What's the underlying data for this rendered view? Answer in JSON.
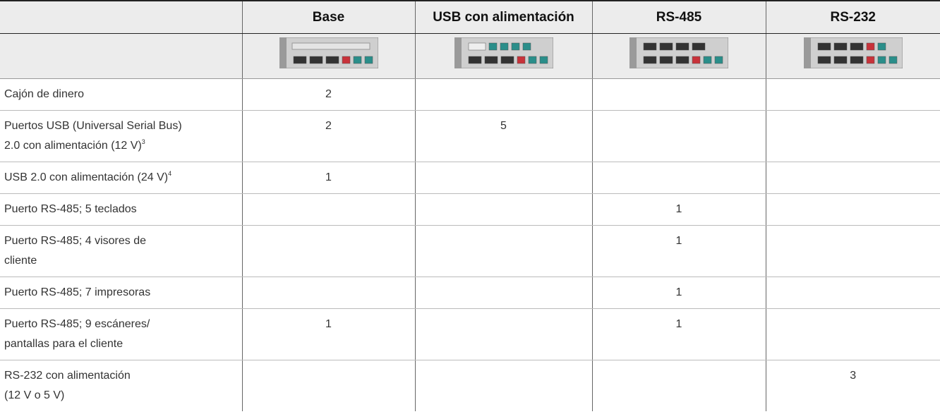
{
  "table": {
    "headers": [
      "Base",
      "USB con alimentación",
      "RS-485",
      "RS-232"
    ],
    "rows": [
      {
        "label": [
          "Cajón de dinero"
        ],
        "values": [
          2,
          null,
          null,
          null
        ]
      },
      {
        "label": [
          "Puertos USB (Universal Serial Bus)",
          "2.0 con alimentación (12 V)"
        ],
        "note": "3",
        "values": [
          2,
          5,
          null,
          null
        ]
      },
      {
        "label": [
          "USB 2.0 con alimentación (24 V)"
        ],
        "note": "4",
        "values": [
          1,
          null,
          null,
          null
        ]
      },
      {
        "label": [
          "Puerto RS-485; 5 teclados"
        ],
        "values": [
          null,
          null,
          1,
          null
        ]
      },
      {
        "label": [
          "Puerto RS-485; 4 visores de",
          "cliente"
        ],
        "values": [
          null,
          null,
          1,
          null
        ]
      },
      {
        "label": [
          "Puerto RS-485; 7 impresoras"
        ],
        "values": [
          null,
          null,
          1,
          null
        ]
      },
      {
        "label": [
          "Puerto RS-485; 9 escáneres/",
          "pantallas para el cliente"
        ],
        "values": [
          1,
          null,
          1,
          null
        ]
      },
      {
        "label": [
          "RS-232 con alimentación",
          "(12 V o 5 V)"
        ],
        "values": [
          null,
          null,
          null,
          3
        ]
      }
    ]
  }
}
